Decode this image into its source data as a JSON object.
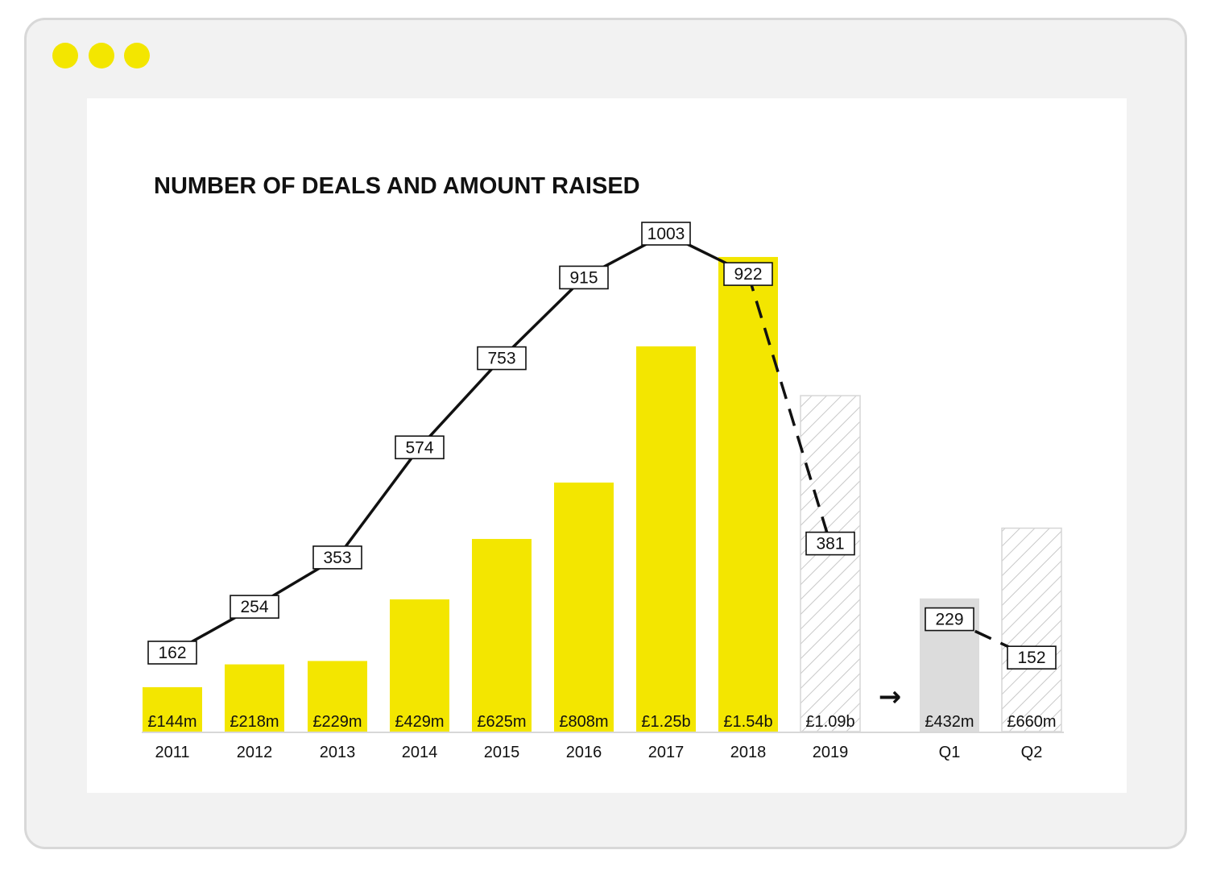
{
  "window": {
    "dots": [
      "dot",
      "dot",
      "dot"
    ]
  },
  "colors": {
    "bar": "#f3e600",
    "projected_bar": "#ffffff",
    "projected_hatch": "#c8c8c8",
    "q1_bar": "#dcdcdc",
    "line": "#111111",
    "window_dots": "#f3e600"
  },
  "chart_data": {
    "type": "bar",
    "title": "NUMBER OF DEALS AND AMOUNT RAISED",
    "categories": [
      "2011",
      "2012",
      "2013",
      "2014",
      "2015",
      "2016",
      "2017",
      "2018",
      "2019",
      "Q1",
      "Q2"
    ],
    "series": [
      {
        "kind": "bar",
        "amounts_gbp_m": [
          144,
          218,
          229,
          429,
          625,
          808,
          1250,
          1540,
          1090,
          432,
          660
        ],
        "value_labels": [
          "£144m",
          "£218m",
          "£229m",
          "£429m",
          "£625m",
          "£808m",
          "£1.25b",
          "£1.54b",
          "£1.09b",
          "£432m",
          "£660m"
        ],
        "styles": [
          "solid",
          "solid",
          "solid",
          "solid",
          "solid",
          "solid",
          "solid",
          "solid",
          "hatched",
          "grey",
          "hatched"
        ]
      },
      {
        "kind": "line",
        "values": [
          162,
          254,
          353,
          574,
          753,
          915,
          1003,
          922,
          381,
          229,
          152
        ],
        "dashed_segments": [
          [
            7,
            8
          ],
          [
            9,
            10
          ]
        ]
      }
    ],
    "arrow": "→",
    "grid": false,
    "legend": "none"
  }
}
